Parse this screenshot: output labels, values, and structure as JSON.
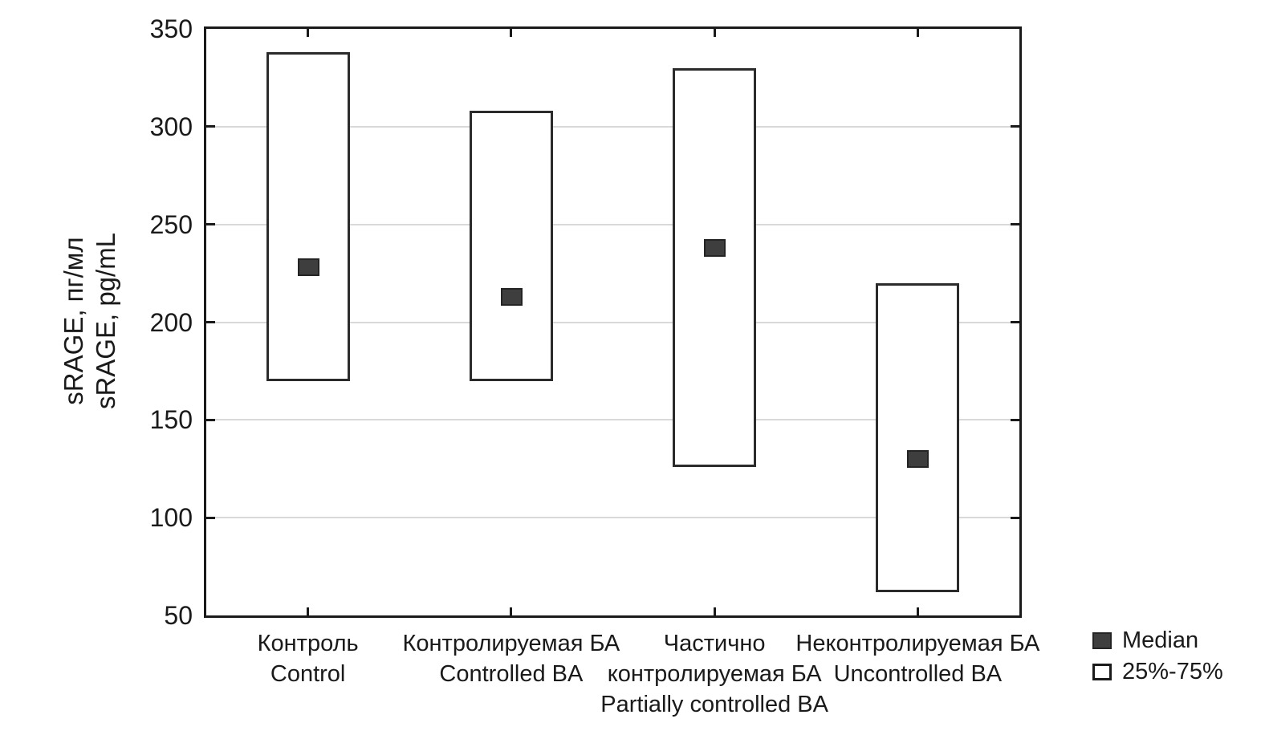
{
  "chart_data": {
    "type": "box",
    "title": "",
    "ylabel_lines": [
      "sRAGE, пг/мл",
      "sRAGE, pg/mL"
    ],
    "xlabel": "",
    "ylim": [
      50,
      350
    ],
    "ytick_step": 50,
    "yticks": [
      350,
      300,
      250,
      200,
      150,
      100,
      50
    ],
    "gridlines": [
      300,
      250,
      200,
      150,
      100
    ],
    "grid": "horizontal-only",
    "categories": [
      {
        "label_lines": [
          "Контроль",
          "Control"
        ],
        "q1": 170,
        "median": 228,
        "q3": 338
      },
      {
        "label_lines": [
          "Контролируемая БА",
          "Controlled BA"
        ],
        "q1": 170,
        "median": 213,
        "q3": 308
      },
      {
        "label_lines": [
          "Частично",
          "контролируемая БА",
          "Partially controlled BA"
        ],
        "q1": 126,
        "median": 238,
        "q3": 330
      },
      {
        "label_lines": [
          "Неконтролируемая БА",
          "Uncontrolled BA"
        ],
        "q1": 62,
        "median": 130,
        "q3": 220
      }
    ],
    "legend": [
      {
        "label": "Median",
        "swatch": "median-filled-square"
      },
      {
        "label": "25%-75%",
        "swatch": "white-box-square"
      }
    ],
    "legend_position": "bottom-right",
    "colors": {
      "axis": "#1a1a1a",
      "gridline": "#d9d9d9",
      "box_border": "#2b2b2b",
      "median_fill": "#3e3e3e",
      "background": "#ffffff",
      "text": "#1a1a1a"
    }
  }
}
